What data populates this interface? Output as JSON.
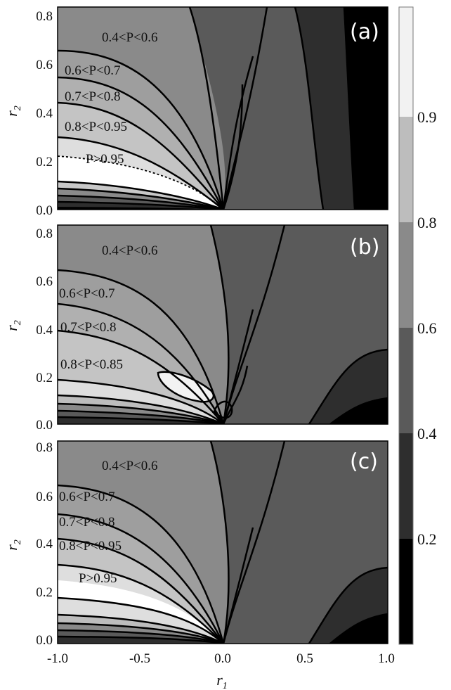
{
  "chart_data": {
    "type": "heatmap",
    "subtype": "filled contour",
    "shared_x_axis": {
      "label_symbol": "r",
      "label_subscript": "1",
      "range": [
        -1.0,
        1.0
      ],
      "ticks": [
        "-1.0",
        "-0.5",
        "0.0",
        "0.5",
        "1.0"
      ]
    },
    "colorbar": {
      "range": [
        0.0,
        1.0
      ],
      "tick_labels": [
        "0.2",
        "0.4",
        "0.6",
        "0.8",
        "0.9"
      ],
      "tick_values": [
        0.2,
        0.4,
        0.6,
        0.8,
        0.9
      ],
      "bands": [
        {
          "from": 0.0,
          "to": 0.2,
          "color": "#000000"
        },
        {
          "from": 0.2,
          "to": 0.4,
          "color": "#2e2e2e"
        },
        {
          "from": 0.4,
          "to": 0.6,
          "color": "#5a5a5a"
        },
        {
          "from": 0.6,
          "to": 0.8,
          "color": "#8a8a8a"
        },
        {
          "from": 0.8,
          "to": 0.9,
          "color": "#bdbdbd"
        },
        {
          "from": 0.9,
          "to": 1.0,
          "color": "#f2f2f2"
        }
      ]
    },
    "panels": [
      {
        "label": "(a)",
        "y_axis": {
          "label_symbol": "r",
          "label_subscript": "2",
          "range": [
            0.0,
            0.8
          ],
          "ticks": [
            "0.0",
            "0.2",
            "0.4",
            "0.6",
            "0.8"
          ]
        },
        "region_labels": [
          "0.4<P<0.6",
          "0.6<P<0.7",
          "0.7<P<0.8",
          "0.8<P<0.95",
          "P>0.95"
        ]
      },
      {
        "label": "(b)",
        "y_axis": {
          "label_symbol": "r",
          "label_subscript": "2",
          "range": [
            0.0,
            0.8
          ],
          "ticks": [
            "0.0",
            "0.2",
            "0.4",
            "0.6",
            "0.8"
          ]
        },
        "region_labels": [
          "0.4<P<0.6",
          "0.6<P<0.7",
          "0.7<P<0.8",
          "0.8<P<0.85"
        ]
      },
      {
        "label": "(c)",
        "y_axis": {
          "label_symbol": "r",
          "label_subscript": "2",
          "range": [
            0.0,
            0.8
          ],
          "ticks": [
            "0.0",
            "0.2",
            "0.4",
            "0.6",
            "0.8"
          ]
        },
        "region_labels": [
          "0.4<P<0.6",
          "0.6<P<0.7",
          "0.7<P<0.8",
          "0.8<P<0.95",
          "P>0.95"
        ]
      }
    ]
  }
}
